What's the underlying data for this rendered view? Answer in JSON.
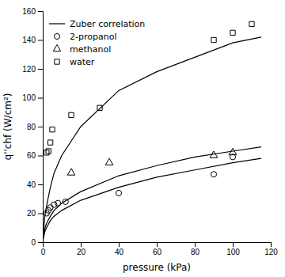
{
  "chart_data": {
    "type": "scatter",
    "xlabel": "pressure (kPa)",
    "ylabel": "q''chf (W/cm²)",
    "xlim": [
      0,
      120
    ],
    "ylim": [
      0,
      160
    ],
    "xticks": [
      0,
      20,
      40,
      60,
      80,
      100,
      120
    ],
    "yticks": [
      0,
      20,
      40,
      60,
      80,
      100,
      120,
      140,
      160
    ],
    "grid": false,
    "legend": "upper-left",
    "series": [
      {
        "name": "Zuber correlation",
        "type": "line",
        "line_style": "solid",
        "color": "#000000",
        "x": [
          0.3,
          1,
          2,
          4,
          6,
          10,
          20,
          40,
          60,
          80,
          100,
          115
        ],
        "values": [
          2,
          7,
          10,
          15,
          18,
          22,
          29,
          38,
          45,
          50,
          55,
          58
        ]
      },
      {
        "name": "Zuber correlation",
        "type": "line",
        "line_style": "solid",
        "color": "#000000",
        "x": [
          0.3,
          1,
          2,
          4,
          6,
          10,
          20,
          40,
          60,
          80,
          100,
          115
        ],
        "values": [
          3,
          9,
          13,
          18,
          22,
          27,
          35,
          46,
          53,
          59,
          63,
          66
        ]
      },
      {
        "name": "Zuber correlation",
        "type": "line",
        "line_style": "solid",
        "color": "#000000",
        "x": [
          0.3,
          1,
          2,
          4,
          6,
          10,
          20,
          40,
          60,
          80,
          100,
          115
        ],
        "values": [
          5,
          17,
          25,
          38,
          48,
          60,
          80,
          105,
          118,
          128,
          138,
          142
        ]
      },
      {
        "name": "2-propanol",
        "type": "scatter",
        "marker": "circle",
        "color": "#000000",
        "x": [
          2,
          3,
          4,
          6,
          8,
          12,
          40,
          90,
          100
        ],
        "values": [
          20,
          22,
          24,
          26,
          27,
          28,
          34,
          47,
          59
        ]
      },
      {
        "name": "methanol",
        "type": "scatter",
        "marker": "triangle",
        "color": "#000000",
        "x": [
          15,
          35,
          90,
          100
        ],
        "values": [
          48,
          55,
          60,
          62
        ]
      },
      {
        "name": "water",
        "type": "scatter",
        "marker": "square",
        "color": "#000000",
        "x": [
          2,
          3,
          4,
          5,
          15,
          30,
          90,
          100,
          110
        ],
        "values": [
          62,
          63,
          69,
          78,
          88,
          93,
          140,
          145,
          151
        ]
      }
    ]
  }
}
